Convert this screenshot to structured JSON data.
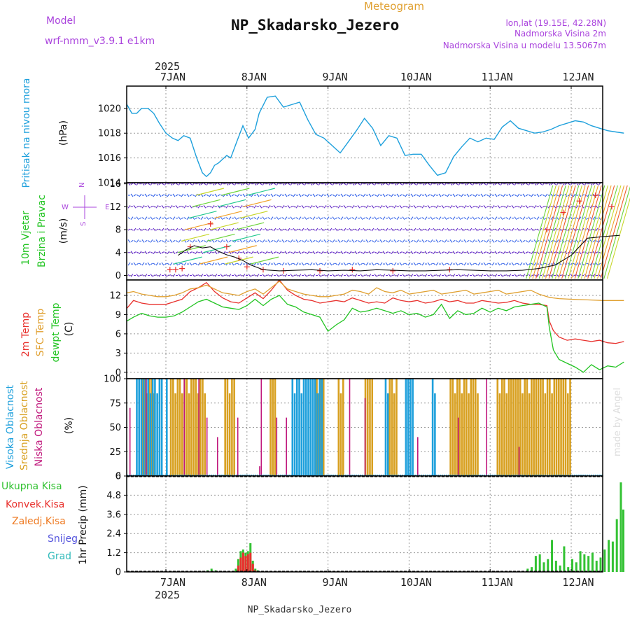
{
  "header": {
    "model_label": "Model",
    "model_name": "wrf-nmm_v3.9.1 e1km",
    "meteogram_label": "Meteogram",
    "location_title": "NP_Skadarsko_Jezero",
    "coords": "lon,lat (19.15E, 42.28N)",
    "elevation": "Nadmorska Visina 2m",
    "model_elevation": "Nadmorska Visina u modelu 13.5067m",
    "watermark": "made by Angel",
    "footer": "NP_Skadarsko_Jezero"
  },
  "colors": {
    "pressure": "#1ea0dc",
    "temp2m": "#e8302c",
    "sfc_temp": "#e0a030",
    "dewpoint": "#22c422",
    "cloud_high": "#1ea0dc",
    "cloud_mid": "#d8a020",
    "cloud_low": "#c0187c",
    "precip_total": "#33c233",
    "precip_conv": "#e8302c",
    "freezing_rain": "#ee7a22",
    "snow": "#5555dd",
    "hail": "#33bbbb",
    "label_purple": "#aa44dd"
  },
  "time_axis": {
    "year": "2025",
    "days": [
      "7JAN",
      "8JAN",
      "9JAN",
      "10JAN",
      "11JAN",
      "12JAN"
    ]
  },
  "chart_data": [
    {
      "type": "line",
      "panel": "pressure",
      "ylabel": "Pritisak na nivou mora",
      "unit": "(hPa)",
      "yticks": [
        1014,
        1016,
        1018,
        1020
      ],
      "ylim": [
        1014,
        1021.8
      ],
      "x_unit": "days from 7JAN 00UTC",
      "series": [
        {
          "name": "Pritisak na nivou mora",
          "color": "#1ea0dc",
          "x": [
            -0.48,
            -0.42,
            -0.36,
            -0.3,
            -0.22,
            -0.15,
            -0.08,
            0.0,
            0.08,
            0.15,
            0.22,
            0.3,
            0.38,
            0.45,
            0.5,
            0.55,
            0.6,
            0.65,
            0.7,
            0.75,
            0.8,
            0.88,
            0.95,
            1.02,
            1.1,
            1.15,
            1.25,
            1.35,
            1.45,
            1.55,
            1.65,
            1.75,
            1.85,
            1.95,
            2.05,
            2.15,
            2.25,
            2.35,
            2.45,
            2.55,
            2.65,
            2.75,
            2.85,
            2.95,
            3.05,
            3.15,
            3.25,
            3.35,
            3.45,
            3.55,
            3.65,
            3.75,
            3.85,
            3.95,
            4.05,
            4.15,
            4.25,
            4.35,
            4.45,
            4.55,
            4.65,
            4.75,
            4.85,
            4.95,
            5.05,
            5.15,
            5.25,
            5.35,
            5.45,
            5.55,
            5.65
          ],
          "y": [
            1020.3,
            1019.6,
            1019.6,
            1020.0,
            1020.0,
            1019.6,
            1018.8,
            1018.0,
            1017.6,
            1017.4,
            1017.8,
            1017.6,
            1016.0,
            1014.8,
            1014.5,
            1014.8,
            1015.4,
            1015.6,
            1015.9,
            1016.2,
            1016.0,
            1017.4,
            1018.6,
            1017.6,
            1018.3,
            1019.6,
            1020.9,
            1021.0,
            1020.1,
            1020.3,
            1020.5,
            1019.1,
            1017.9,
            1017.6,
            1017.0,
            1016.4,
            1017.3,
            1018.2,
            1019.2,
            1018.4,
            1017.0,
            1017.8,
            1017.6,
            1016.2,
            1016.3,
            1016.3,
            1015.4,
            1014.6,
            1014.8,
            1016.1,
            1016.9,
            1017.6,
            1017.3,
            1017.6,
            1017.5,
            1018.5,
            1019.0,
            1018.4,
            1018.2,
            1018.0,
            1018.1,
            1018.3,
            1018.6,
            1018.8,
            1019.0,
            1018.9,
            1018.6,
            1018.4,
            1018.2,
            1018.1,
            1018.0
          ]
        }
      ]
    },
    {
      "type": "line",
      "panel": "wind",
      "ylabel": "10m Vjetar Brzina i Pravac",
      "unit": "(m/s)",
      "yticks": [
        0,
        4,
        8,
        12,
        16
      ],
      "ylim": [
        -0.8,
        16.2
      ],
      "series": [
        {
          "name": "Brzina",
          "color": "#111111",
          "x": [
            0.15,
            0.25,
            0.35,
            0.45,
            0.55,
            0.65,
            0.75,
            0.85,
            0.95,
            1.05,
            1.2,
            1.4,
            1.6,
            1.8,
            2.0,
            2.2,
            2.4,
            2.6,
            2.8,
            3.0,
            3.2,
            3.4,
            3.6,
            3.8,
            4.0,
            4.2,
            4.4,
            4.6,
            4.8,
            5.0,
            5.2,
            5.4,
            5.6
          ],
          "y": [
            3.5,
            4.5,
            5.2,
            4.8,
            5.0,
            4.2,
            3.6,
            3.2,
            2.6,
            1.8,
            1.0,
            0.8,
            0.9,
            1.0,
            0.8,
            0.9,
            0.8,
            1.0,
            0.9,
            0.8,
            0.8,
            0.9,
            1.0,
            0.9,
            0.8,
            0.8,
            0.9,
            1.2,
            1.8,
            3.5,
            6.5,
            6.8,
            7.0
          ]
        }
      ]
    },
    {
      "type": "line",
      "panel": "temperature",
      "unit": "(C)",
      "yticks": [
        0,
        3,
        6,
        9,
        12
      ],
      "ylim": [
        -1,
        14.4
      ],
      "series": [
        {
          "name": "2m Temp",
          "color": "#e8302c",
          "x": [
            -0.48,
            -0.4,
            -0.3,
            -0.2,
            -0.1,
            0.0,
            0.1,
            0.2,
            0.3,
            0.4,
            0.5,
            0.6,
            0.7,
            0.8,
            0.9,
            1.0,
            1.1,
            1.2,
            1.3,
            1.4,
            1.5,
            1.6,
            1.7,
            1.8,
            1.9,
            2.0,
            2.1,
            2.2,
            2.3,
            2.4,
            2.5,
            2.6,
            2.7,
            2.8,
            2.9,
            3.0,
            3.1,
            3.2,
            3.3,
            3.4,
            3.5,
            3.6,
            3.7,
            3.8,
            3.9,
            4.0,
            4.1,
            4.2,
            4.3,
            4.4,
            4.5,
            4.6,
            4.7,
            4.73,
            4.78,
            4.85,
            4.95,
            5.05,
            5.15,
            5.25,
            5.35,
            5.45,
            5.55,
            5.65
          ],
          "y": [
            10.0,
            11.2,
            10.8,
            10.6,
            10.6,
            10.6,
            11.0,
            11.4,
            12.6,
            13.2,
            14.0,
            12.6,
            11.6,
            11.0,
            10.8,
            11.6,
            12.4,
            11.5,
            12.8,
            14.4,
            12.8,
            12.0,
            11.4,
            11.2,
            10.8,
            11.0,
            11.2,
            11.0,
            11.6,
            11.2,
            10.8,
            11.0,
            10.8,
            11.6,
            11.2,
            11.0,
            11.2,
            10.8,
            11.0,
            11.4,
            11.0,
            11.2,
            10.8,
            10.8,
            11.2,
            11.0,
            10.8,
            10.9,
            11.2,
            10.8,
            10.6,
            10.6,
            10.4,
            8.0,
            6.5,
            5.5,
            5.0,
            5.2,
            5.0,
            4.8,
            5.0,
            4.6,
            4.5,
            4.8
          ]
        },
        {
          "name": "SFC Temp",
          "color": "#e0a030",
          "x": [
            -0.48,
            -0.4,
            -0.3,
            -0.2,
            -0.1,
            0.0,
            0.1,
            0.2,
            0.3,
            0.4,
            0.5,
            0.6,
            0.7,
            0.8,
            0.9,
            1.0,
            1.1,
            1.2,
            1.3,
            1.4,
            1.5,
            1.6,
            1.7,
            1.8,
            1.9,
            2.0,
            2.1,
            2.2,
            2.3,
            2.4,
            2.5,
            2.6,
            2.7,
            2.8,
            2.9,
            3.0,
            3.1,
            3.2,
            3.3,
            3.4,
            3.5,
            3.6,
            3.7,
            3.8,
            3.9,
            4.0,
            4.1,
            4.2,
            4.3,
            4.4,
            4.5,
            4.6,
            4.7,
            4.73,
            4.78,
            4.85,
            5.0,
            5.2,
            5.4,
            5.65
          ],
          "y": [
            12.4,
            12.6,
            12.2,
            12.0,
            11.8,
            11.8,
            12.0,
            12.4,
            13.0,
            13.2,
            13.6,
            13.0,
            12.4,
            12.2,
            12.0,
            12.6,
            13.0,
            12.2,
            13.2,
            14.2,
            13.0,
            12.6,
            12.2,
            12.0,
            11.8,
            11.8,
            12.0,
            12.2,
            12.8,
            12.6,
            12.2,
            13.2,
            12.6,
            12.4,
            12.8,
            12.2,
            12.4,
            12.6,
            12.8,
            12.2,
            12.4,
            12.6,
            12.8,
            12.2,
            12.4,
            12.6,
            12.8,
            12.2,
            12.4,
            12.6,
            12.8,
            12.2,
            11.8,
            11.7,
            11.6,
            11.5,
            11.4,
            11.3,
            11.2,
            11.2
          ]
        },
        {
          "name": "dewpt Temp",
          "color": "#22c422",
          "x": [
            -0.48,
            -0.4,
            -0.3,
            -0.2,
            -0.1,
            0.0,
            0.1,
            0.2,
            0.3,
            0.4,
            0.5,
            0.6,
            0.7,
            0.8,
            0.9,
            1.0,
            1.1,
            1.2,
            1.3,
            1.4,
            1.5,
            1.6,
            1.7,
            1.8,
            1.9,
            2.0,
            2.1,
            2.2,
            2.3,
            2.4,
            2.5,
            2.6,
            2.7,
            2.8,
            2.9,
            3.0,
            3.1,
            3.2,
            3.3,
            3.4,
            3.5,
            3.6,
            3.7,
            3.8,
            3.9,
            4.0,
            4.1,
            4.2,
            4.3,
            4.4,
            4.5,
            4.6,
            4.7,
            4.73,
            4.78,
            4.85,
            4.95,
            5.05,
            5.15,
            5.25,
            5.35,
            5.45,
            5.55,
            5.65
          ],
          "y": [
            8.0,
            8.6,
            9.2,
            8.8,
            8.6,
            8.6,
            8.8,
            9.4,
            10.2,
            11.0,
            11.4,
            10.8,
            10.2,
            10.0,
            9.8,
            10.4,
            11.4,
            10.4,
            11.4,
            12.0,
            10.6,
            10.2,
            9.4,
            9.0,
            8.6,
            6.4,
            7.4,
            8.2,
            10.0,
            9.4,
            9.6,
            10.0,
            9.6,
            9.2,
            9.6,
            9.0,
            9.2,
            8.6,
            9.0,
            10.6,
            8.4,
            9.6,
            9.0,
            9.2,
            10.0,
            9.4,
            10.0,
            9.6,
            10.2,
            10.4,
            10.6,
            10.8,
            10.2,
            7.0,
            3.5,
            2.0,
            1.4,
            0.8,
            0.0,
            1.2,
            0.4,
            1.0,
            0.8,
            1.6
          ]
        }
      ]
    },
    {
      "type": "bar",
      "panel": "clouds",
      "unit": "(%)",
      "yticks": [
        0,
        25,
        50,
        75,
        100
      ],
      "ylim": [
        0,
        100
      ],
      "bar_groups": [
        {
          "layer": "high",
          "name": "Visoka Oblacnost",
          "color": "#1ea0dc",
          "ranges": [
            [
              -0.37,
              -0.05
            ],
            [
              0.0,
              0.02
            ],
            [
              1.55,
              1.92
            ],
            [
              2.7,
              2.75
            ],
            [
              2.95,
              3.05
            ],
            [
              3.28,
              3.32
            ]
          ]
        },
        {
          "layer": "mid",
          "name": "Srednja Oblacnost",
          "color": "#d8a020",
          "ranges": [
            [
              -0.3,
              -0.15
            ],
            [
              0.05,
              0.48
            ],
            [
              0.72,
              0.85
            ],
            [
              1.28,
              1.35
            ],
            [
              1.85,
              1.95
            ],
            [
              2.12,
              2.18
            ],
            [
              2.45,
              2.55
            ],
            [
              2.75,
              2.85
            ],
            [
              3.5,
              3.85
            ],
            [
              4.08,
              4.98
            ]
          ]
        },
        {
          "layer": "low",
          "name": "Niska Oblacnost",
          "values_shown": [
            70,
            100,
            100,
            100,
            60,
            40,
            60,
            10,
            100,
            60,
            60,
            100,
            80,
            40,
            60,
            100,
            30
          ]
        }
      ]
    },
    {
      "type": "bar",
      "panel": "precipitation",
      "ylabel": "1hr Precip (mm)",
      "yticks": [
        0,
        1.2,
        2.4,
        3.6,
        4.8,
        6
      ],
      "ylim": [
        0,
        6
      ],
      "categories_x": [
        0.5,
        0.55,
        0.6,
        0.85,
        0.88,
        0.91,
        0.94,
        0.97,
        1.0,
        1.03,
        1.06,
        1.09,
        1.12,
        4.45,
        4.5,
        4.55,
        4.6,
        4.65,
        4.7,
        4.75,
        4.8,
        4.85,
        4.9,
        4.95,
        5.0,
        5.05,
        5.1,
        5.15,
        5.2,
        5.25,
        5.3,
        5.35,
        5.4,
        5.45,
        5.5,
        5.55,
        5.6,
        5.63
      ],
      "series": [
        {
          "name": "Ukupna Kisa",
          "color": "#33c233",
          "values": [
            0.1,
            0.2,
            0.1,
            0.2,
            0.8,
            1.3,
            1.4,
            1.2,
            1.3,
            1.8,
            0.7,
            0.2,
            0.1,
            0.2,
            0.3,
            1.0,
            1.1,
            0.6,
            0.8,
            2.0,
            0.7,
            0.4,
            1.6,
            0.3,
            0.8,
            0.6,
            1.3,
            1.1,
            1.0,
            1.2,
            0.7,
            0.9,
            1.4,
            2.0,
            1.9,
            3.3,
            5.6,
            3.9
          ]
        },
        {
          "name": "Konvek.Kisa",
          "color": "#e8302c",
          "values": [
            0,
            0,
            0,
            0,
            0.4,
            0.9,
            1.2,
            1.0,
            1.1,
            1.2,
            0.5,
            0.1,
            0,
            0,
            0,
            0,
            0,
            0,
            0,
            0,
            0,
            0,
            0,
            0,
            0,
            0,
            0,
            0,
            0,
            0,
            0,
            0,
            0,
            0,
            0,
            0,
            0,
            0
          ]
        }
      ]
    }
  ],
  "panel_labels": {
    "pressure": [
      "Pritisak na nivou mora"
    ],
    "pressure_unit": "(hPa)",
    "wind": [
      "10m Vjetar",
      "Brzina i Pravac"
    ],
    "wind_unit": "(m/s)",
    "wind_compass": [
      "N",
      "W",
      "E",
      "S",
      "<",
      ">",
      "|",
      "-"
    ],
    "temp": [
      "2m Temp",
      "SFC Temp",
      "dewpt Temp"
    ],
    "temp_unit": "(C)",
    "cloud": [
      "Visoka Oblacnost",
      "Srednja Oblacnost",
      "Niska Oblacnost"
    ],
    "cloud_unit": "(%)",
    "precip": [
      "Ukupna Kisa",
      "Konvek.Kisa",
      "Zaledj.Kisa",
      "Snijeg",
      "Grad"
    ],
    "precip_unit": "1hr Precip (mm)"
  }
}
